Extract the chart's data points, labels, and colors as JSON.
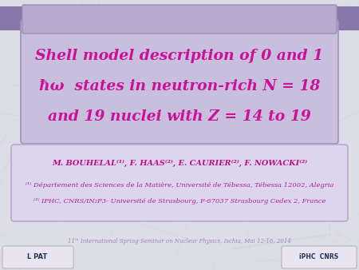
{
  "title_line1": "Shell model description of 0 and 1",
  "title_line2": "ħω  states in neutron-rich Ν = 18",
  "title_line3": "and 19 nuclei with Z = 14 to 19",
  "authors": "M. BOUHELAL⁽¹⁾, F. HAAS⁽²⁾, E. CAURIER⁽²⁾, F. NOWACKI⁽²⁾",
  "affil1": "⁽¹⁾ Département des Sciences de la Matière, Université de Tébessa, Tébessa 12002, Alegria",
  "affil2": "⁽²⁾ IPHC, CNRS/IN₂P3- Université de Strasbourg, F-67037 Strasbourg Cedex 2, France",
  "footer": "11ᵗʰ International Spring Seminar on Nuclear Physics, Ischia, Mai 12-16, 2014",
  "bg_marble_light": "#dddde8",
  "bg_marble_vein": "#c8c8d8",
  "ribbon_main": "#c8bede",
  "ribbon_top_strip": "#b8aacc",
  "ribbon_tab_dark": "#8878aa",
  "ribbon_border": "#a090b8",
  "title_color": "#cc1199",
  "info_box_bg": "#ddd4ee",
  "info_box_border": "#b8a8cc",
  "authors_color": "#bb1188",
  "affil_color": "#aa2299",
  "footer_color": "#9988aa"
}
